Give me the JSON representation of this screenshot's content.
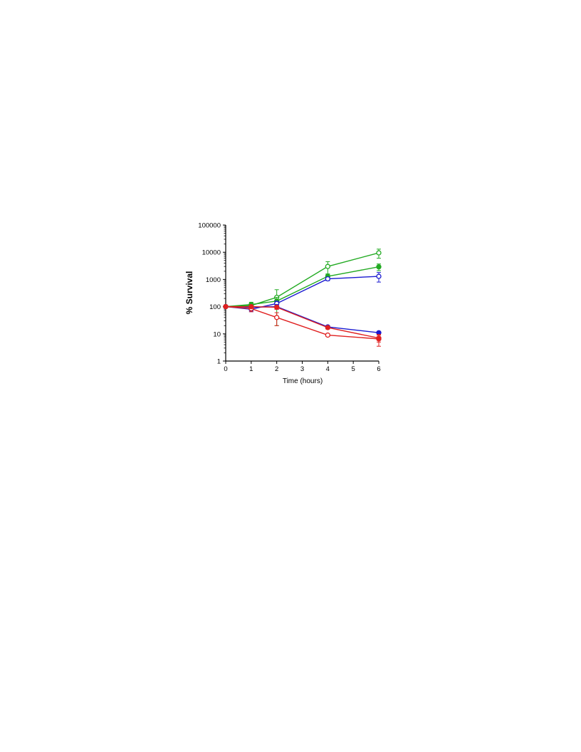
{
  "chart_data": {
    "type": "line",
    "title": "",
    "xlabel": "Time (hours)",
    "ylabel": "% Survival",
    "xlim": [
      0,
      6
    ],
    "ylim": [
      1,
      100000
    ],
    "yscale": "log",
    "grid": false,
    "x_ticks": [
      "0",
      "1",
      "2",
      "3",
      "4",
      "5",
      "6"
    ],
    "y_ticks": [
      "1",
      "10",
      "100",
      "1000",
      "10000",
      "100000"
    ],
    "series": [
      {
        "color": "#22aa22",
        "marker": "open-circle",
        "x": [
          0,
          1,
          2,
          4,
          6
        ],
        "y": [
          100,
          110,
          220,
          3000,
          9500
        ],
        "err": [
          0,
          20,
          200,
          1500,
          3500
        ]
      },
      {
        "color": "#22aa22",
        "marker": "filled-circle",
        "x": [
          0,
          1,
          2,
          4,
          6
        ],
        "y": [
          100,
          120,
          160,
          1300,
          2900
        ],
        "err": [
          0,
          25,
          60,
          300,
          800
        ]
      },
      {
        "color": "#1a1ad0",
        "marker": "open-circle",
        "x": [
          0,
          1,
          2,
          4,
          6
        ],
        "y": [
          100,
          80,
          130,
          1050,
          1300
        ],
        "err": [
          0,
          15,
          30,
          150,
          500
        ]
      },
      {
        "color": "#1a1ad0",
        "marker": "filled-circle",
        "x": [
          0,
          1,
          2,
          4,
          6
        ],
        "y": [
          100,
          95,
          100,
          18,
          11
        ],
        "err": [
          0,
          15,
          20,
          2,
          1
        ]
      },
      {
        "color": "#e02020",
        "marker": "open-circle",
        "x": [
          0,
          1,
          2,
          4,
          6
        ],
        "y": [
          100,
          85,
          40,
          9,
          6.5
        ],
        "err": [
          0,
          20,
          20,
          1,
          3
        ]
      },
      {
        "color": "#e02020",
        "marker": "filled-circle",
        "x": [
          0,
          1,
          2,
          4,
          6
        ],
        "y": [
          100,
          100,
          95,
          17,
          7
        ],
        "err": [
          0,
          15,
          15,
          2,
          2
        ]
      }
    ]
  }
}
